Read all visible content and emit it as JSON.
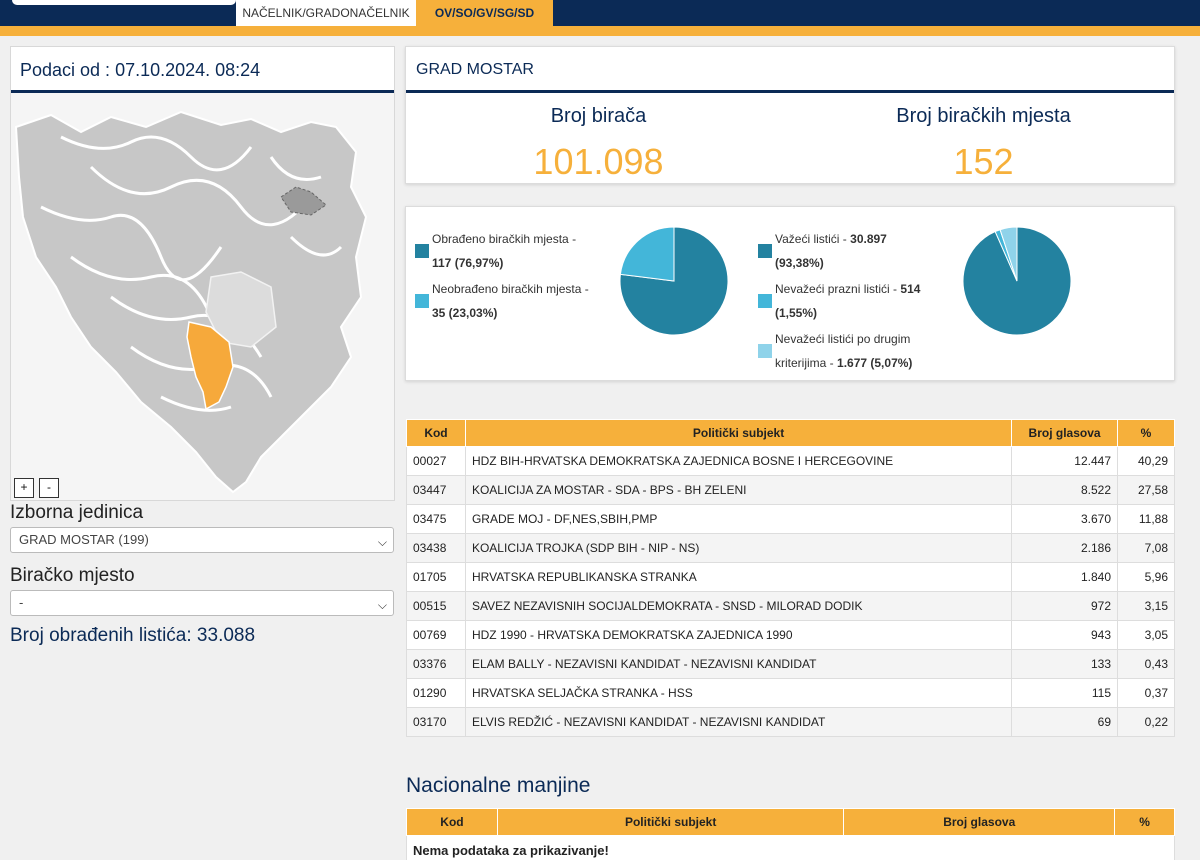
{
  "header": {
    "tabs": [
      {
        "label": "NAČELNIK/GRADONAČELNIK",
        "active": false
      },
      {
        "label": "OV/SO/GV/SG/SD",
        "active": true
      }
    ]
  },
  "left": {
    "data_date": "Podaci od : 07.10.2024. 08:24",
    "zoom_in": "+",
    "zoom_out": "-",
    "izborna_label": "Izborna jedinica",
    "izborna_value": "GRAD MOSTAR (199)",
    "birac_label": "Biračko mjesto",
    "birac_value": "-",
    "processed_text": "Broj obrađenih listića: 33.088"
  },
  "summary": {
    "title": "GRAD MOSTAR",
    "voters_label": "Broj birača",
    "voters_value": "101.098",
    "stations_label": "Broj biračkih mjesta",
    "stations_value": "152"
  },
  "pie1": {
    "legend": [
      {
        "label": "Obrađeno biračkih mjesta -",
        "value": "117 (76,97%)",
        "color": "#2382a0",
        "pct": 76.97
      },
      {
        "label": "Neobrađeno biračkih mjesta -",
        "value": "35 (23,03%)",
        "color": "#43b6d9",
        "pct": 23.03
      }
    ]
  },
  "pie2": {
    "legend": [
      {
        "label": "Važeći listići -",
        "value": "30.897",
        "pct_text": "(93,38%)",
        "color": "#2382a0",
        "pct": 93.38
      },
      {
        "label": "Nevažeći prazni listići -",
        "value": "514",
        "pct_text": "(1,55%)",
        "color": "#43b6d9",
        "pct": 1.55
      },
      {
        "label": "Nevažeći listići po drugim",
        "label2": "kriterijima -",
        "value": "1.677",
        "pct_text": "(5,07%)",
        "color": "#8fd3ea",
        "pct": 5.07
      }
    ]
  },
  "results": {
    "headers": [
      "Kod",
      "Politički subjekt",
      "Broj glasova",
      "%"
    ],
    "rows": [
      {
        "kod": "00027",
        "subjekt": "HDZ BIH-HRVATSKA DEMOKRATSKA ZAJEDNICA BOSNE I HERCEGOVINE",
        "glasova": "12.447",
        "pct": "40,29"
      },
      {
        "kod": "03447",
        "subjekt": "KOALICIJA ZA MOSTAR - SDA - BPS - BH ZELENI",
        "glasova": "8.522",
        "pct": "27,58"
      },
      {
        "kod": "03475",
        "subjekt": "GRADE MOJ - DF,NES,SBIH,PMP",
        "glasova": "3.670",
        "pct": "11,88"
      },
      {
        "kod": "03438",
        "subjekt": "KOALICIJA TROJKA (SDP BIH - NIP - NS)",
        "glasova": "2.186",
        "pct": "7,08"
      },
      {
        "kod": "01705",
        "subjekt": "HRVATSKA REPUBLIKANSKA STRANKA",
        "glasova": "1.840",
        "pct": "5,96"
      },
      {
        "kod": "00515",
        "subjekt": "SAVEZ NEZAVISNIH SOCIJALDEMOKRATA - SNSD - MILORAD DODIK",
        "glasova": "972",
        "pct": "3,15"
      },
      {
        "kod": "00769",
        "subjekt": "HDZ 1990 - HRVATSKA DEMOKRATSKA ZAJEDNICA 1990",
        "glasova": "943",
        "pct": "3,05"
      },
      {
        "kod": "03376",
        "subjekt": "ELAM BALLY - NEZAVISNI KANDIDAT - NEZAVISNI KANDIDAT",
        "glasova": "133",
        "pct": "0,43"
      },
      {
        "kod": "01290",
        "subjekt": "HRVATSKA SELJAČKA STRANKA - HSS",
        "glasova": "115",
        "pct": "0,37"
      },
      {
        "kod": "03170",
        "subjekt": "ELVIS REDŽIĆ - NEZAVISNI KANDIDAT - NEZAVISNI KANDIDAT",
        "glasova": "69",
        "pct": "0,22"
      }
    ]
  },
  "minorities": {
    "title": "Nacionalne manjine",
    "headers": [
      "Kod",
      "Politički subjekt",
      "Broj glasova",
      "%"
    ],
    "empty": "Nema podataka za prikazivanje!"
  }
}
